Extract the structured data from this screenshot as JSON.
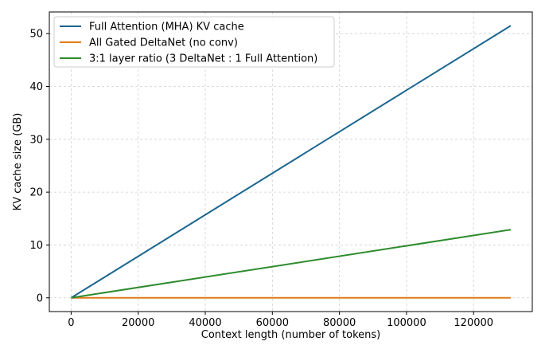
{
  "chart_data": {
    "type": "line",
    "xlabel": "Context length (number of tokens)",
    "ylabel": "KV cache size (GB)",
    "xlim": [
      -6500,
      137500
    ],
    "ylim": [
      -2.6,
      54.1
    ],
    "xticks": [
      0,
      20000,
      40000,
      60000,
      80000,
      100000,
      120000
    ],
    "yticks": [
      0,
      10,
      20,
      30,
      40,
      50
    ],
    "grid": true,
    "legend_position": "top-left",
    "series": [
      {
        "name": "Full Attention (MHA) KV cache",
        "color": "#1a6590",
        "x": [
          0,
          131072
        ],
        "y": [
          0,
          51.5
        ]
      },
      {
        "name": "All Gated DeltaNet (no conv)",
        "color": "#e07b1a",
        "x": [
          0,
          131072
        ],
        "y": [
          0,
          0
        ]
      },
      {
        "name": "3:1 layer ratio (3 DeltaNet : 1 Full Attention)",
        "color": "#2e8b2e",
        "x": [
          0,
          131072
        ],
        "y": [
          0,
          12.9
        ]
      }
    ]
  }
}
